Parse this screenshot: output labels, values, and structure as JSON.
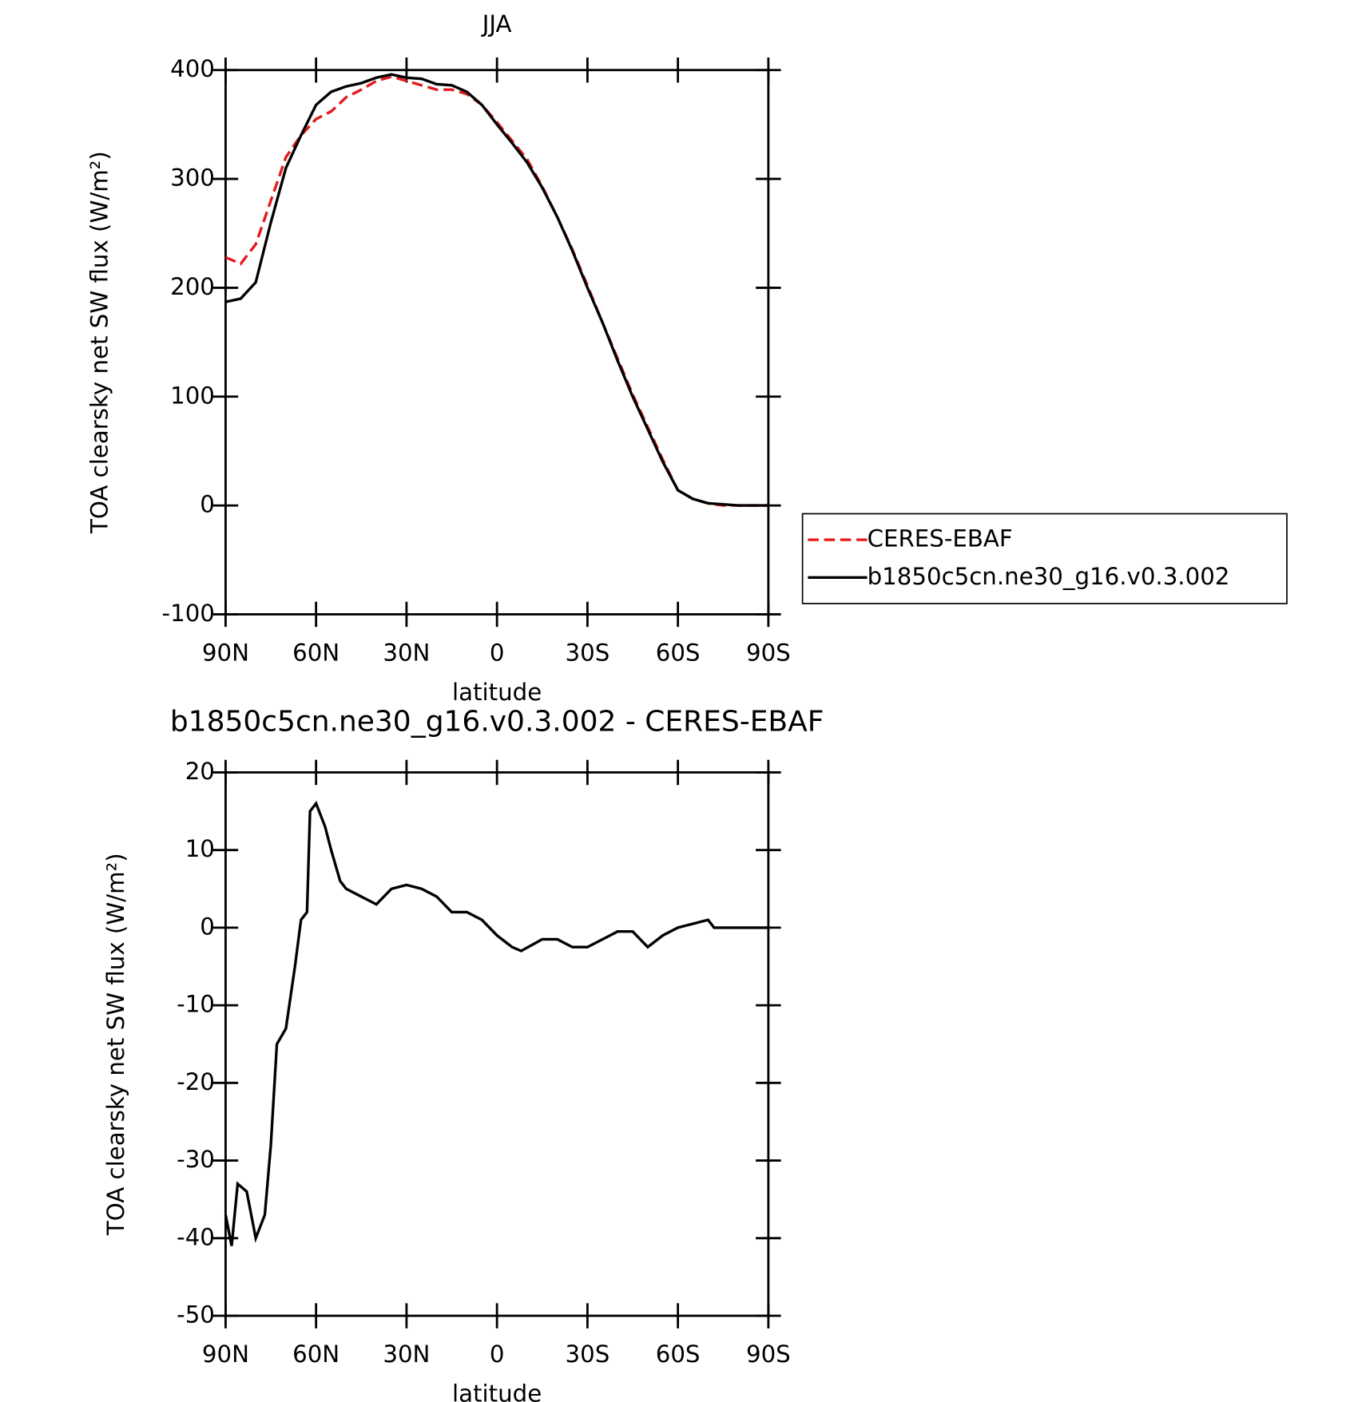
{
  "chart_data": [
    {
      "type": "line",
      "title": "JJA",
      "x_label": "latitude",
      "y_label": "TOA clearsky net SW flux (W/m²)",
      "x": [
        90,
        85,
        80,
        75,
        70,
        65,
        60,
        55,
        50,
        45,
        40,
        35,
        30,
        25,
        20,
        15,
        10,
        5,
        0,
        -5,
        -10,
        -15,
        -20,
        -25,
        -30,
        -35,
        -40,
        -45,
        -50,
        -55,
        -60,
        -65,
        -70,
        -75,
        -80,
        -85,
        -90
      ],
      "series": [
        {
          "name": "CERES-EBAF",
          "color": "#e41a1c",
          "line_style": "dashed",
          "values": [
            228,
            222,
            240,
            280,
            320,
            340,
            355,
            362,
            375,
            382,
            390,
            394,
            390,
            386,
            382,
            382,
            378,
            368,
            352,
            335,
            318,
            293,
            265,
            235,
            202,
            168,
            135,
            102,
            72,
            42,
            14,
            6,
            2,
            0,
            0,
            0,
            0
          ]
        },
        {
          "name": "b1850c5cn.ne30_g16.v0.3.002",
          "color": "#000000",
          "line_style": "solid",
          "values": [
            187,
            190,
            205,
            260,
            310,
            340,
            368,
            380,
            385,
            388,
            393,
            396,
            393,
            392,
            387,
            386,
            380,
            368,
            350,
            333,
            315,
            292,
            265,
            234,
            200,
            168,
            133,
            100,
            70,
            40,
            14,
            6,
            2,
            1,
            0,
            0,
            0
          ]
        }
      ],
      "xlim": [
        90,
        -90
      ],
      "xticks": [
        {
          "value": 90,
          "label": "90N"
        },
        {
          "value": 60,
          "label": "60N"
        },
        {
          "value": 30,
          "label": "30N"
        },
        0,
        {
          "value": -30,
          "label": "30S"
        },
        {
          "value": -60,
          "label": "60S"
        },
        {
          "value": -90,
          "label": "90S"
        }
      ],
      "ylim": [
        -100,
        400
      ],
      "yticks": [
        -100,
        0,
        100,
        200,
        300,
        400
      ],
      "legend": "right"
    },
    {
      "type": "line",
      "title": "b1850c5cn.ne30_g16.v0.3.002 - CERES-EBAF",
      "x_label": "latitude",
      "y_label": "TOA clearsky net SW flux (W/m²)",
      "x": [
        90,
        88,
        86,
        83,
        80,
        77,
        75,
        73,
        70,
        67,
        65,
        63,
        62,
        60,
        57,
        55,
        52,
        50,
        45,
        40,
        35,
        30,
        25,
        20,
        15,
        10,
        5,
        0,
        -5,
        -8,
        -15,
        -20,
        -25,
        -30,
        -35,
        -40,
        -45,
        -50,
        -55,
        -60,
        -65,
        -70,
        -72,
        -80,
        -90
      ],
      "series": [
        {
          "name": "b1850c5cn.ne30_g16.v0.3.002 - CERES-EBAF",
          "color": "#000000",
          "line_style": "solid",
          "values": [
            -37,
            -41,
            -33,
            -34,
            -40,
            -37,
            -28,
            -15,
            -13,
            -5,
            1,
            2,
            15,
            16,
            13,
            10,
            6,
            5,
            4,
            3,
            5,
            5.5,
            5,
            4,
            2,
            2,
            1,
            -1,
            -2.5,
            -3,
            -1.5,
            -1.5,
            -2.5,
            -2.5,
            -1.5,
            -0.5,
            -0.5,
            -2.5,
            -1,
            0,
            0.5,
            1,
            0,
            0,
            0
          ]
        }
      ],
      "xlim": [
        90,
        -90
      ],
      "xticks": [
        {
          "value": 90,
          "label": "90N"
        },
        {
          "value": 60,
          "label": "60N"
        },
        {
          "value": 30,
          "label": "30N"
        },
        0,
        {
          "value": -30,
          "label": "30S"
        },
        {
          "value": -60,
          "label": "60S"
        },
        {
          "value": -90,
          "label": "90S"
        }
      ],
      "ylim": [
        -50,
        20
      ],
      "yticks": [
        -50,
        -40,
        -30,
        -20,
        -10,
        0,
        10,
        20
      ]
    }
  ]
}
